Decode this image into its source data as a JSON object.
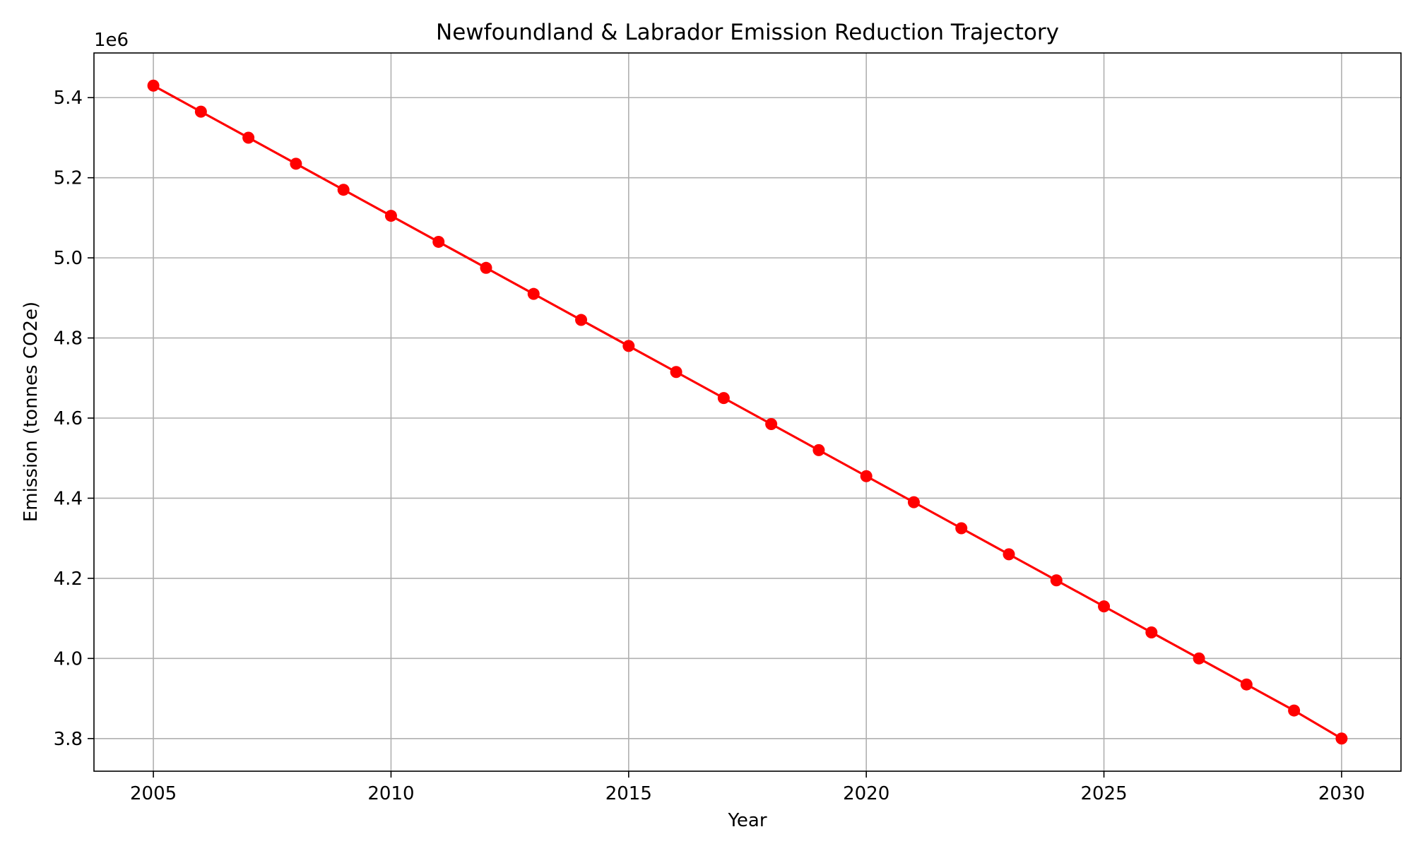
{
  "colors": {
    "line": "#ff0000",
    "marker": "#ff0000",
    "grid": "#b0b0b0",
    "axes": "#000000",
    "background": "#ffffff"
  },
  "chart_data": {
    "type": "line",
    "title": "Newfoundland & Labrador Emission Reduction Trajectory",
    "xlabel": "Year",
    "ylabel": "Emission (tonnes CO2e)",
    "y_offset_label": "1e6",
    "xlim": [
      2003.75,
      2031.25
    ],
    "ylim": [
      3.7185,
      5.5115
    ],
    "x_ticks": [
      2005,
      2010,
      2015,
      2020,
      2025,
      2030
    ],
    "x_tick_labels": [
      "2005",
      "2010",
      "2015",
      "2020",
      "2025",
      "2030"
    ],
    "y_ticks": [
      3.8,
      4.0,
      4.2,
      4.4,
      4.6,
      4.8,
      5.0,
      5.2,
      5.4
    ],
    "y_tick_labels": [
      "3.8",
      "4.0",
      "4.2",
      "4.4",
      "4.6",
      "4.8",
      "5.0",
      "5.2",
      "5.4"
    ],
    "y_scale": 1000000,
    "grid": true,
    "marker": "circle",
    "series": [
      {
        "x": [
          2005,
          2006,
          2007,
          2008,
          2009,
          2010,
          2011,
          2012,
          2013,
          2014,
          2015,
          2016,
          2017,
          2018,
          2019,
          2020,
          2021,
          2022,
          2023,
          2024,
          2025,
          2026,
          2027,
          2028,
          2029,
          2030
        ],
        "values": [
          5.43,
          5.365,
          5.3,
          5.235,
          5.17,
          5.105,
          5.04,
          4.975,
          4.91,
          4.845,
          4.78,
          4.715,
          4.65,
          4.585,
          4.52,
          4.455,
          4.39,
          4.325,
          4.26,
          4.195,
          4.13,
          4.065,
          4.0,
          3.935,
          3.87,
          3.8
        ]
      }
    ]
  }
}
